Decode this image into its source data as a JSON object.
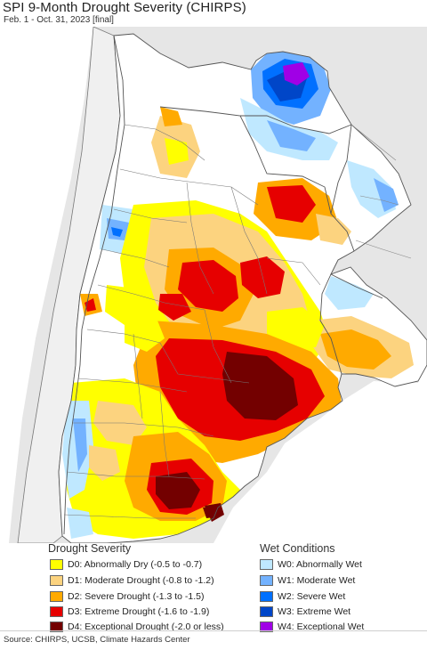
{
  "title": "SPI 9-Month Drought Severity (CHIRPS)",
  "subtitle": "Feb. 1 - Oct. 31, 2023 [final]",
  "legend": {
    "drought_title": "Drought Severity",
    "wet_title": "Wet Conditions",
    "drought": [
      {
        "label": "D0: Abnormally Dry (-0.5 to -0.7)",
        "color": "#ffff00"
      },
      {
        "label": "D1: Moderate Drought (-0.8 to -1.2)",
        "color": "#fcd37f"
      },
      {
        "label": "D2: Severe Drought (-1.3 to -1.5)",
        "color": "#ffaa00"
      },
      {
        "label": "D3: Extreme Drought (-1.6 to -1.9)",
        "color": "#e60000"
      },
      {
        "label": "D4: Exceptional Drought (-2.0 or less)",
        "color": "#730000"
      }
    ],
    "wet": [
      {
        "label": "W0: Abnormally Wet",
        "color": "#bfe8ff"
      },
      {
        "label": "W1: Moderate Wet",
        "color": "#73b2ff"
      },
      {
        "label": "W2: Severe Wet",
        "color": "#0070ff"
      },
      {
        "label": "W3: Extreme Wet",
        "color": "#0046c8"
      },
      {
        "label": "W4: Exceptional Wet",
        "color": "#a000e6"
      }
    ]
  },
  "source": "Source: CHIRPS, UCSB, Climate Hazards Center",
  "colors": {
    "ocean": "#ffffff",
    "outside_land": "#e6e6e6",
    "border": "#555555"
  }
}
